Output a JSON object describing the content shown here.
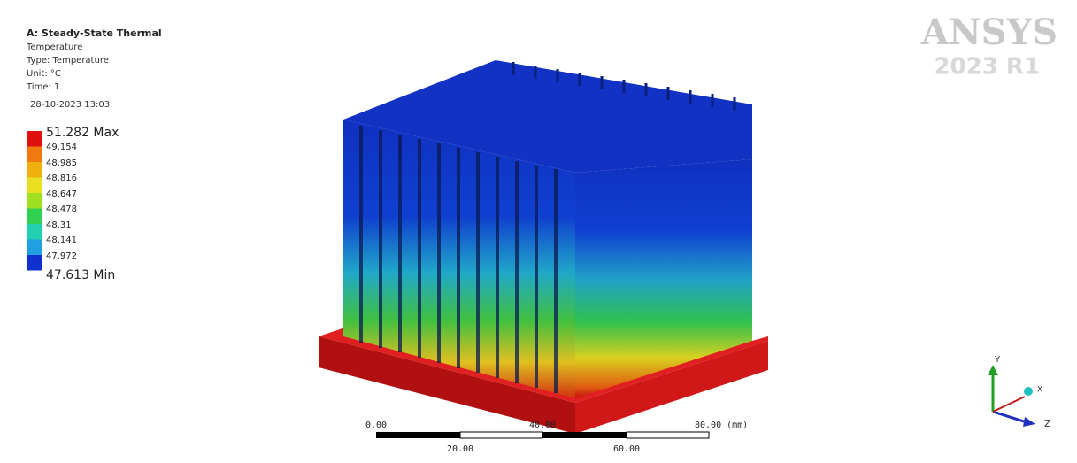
{
  "header": {
    "title": "A: Steady-State Thermal",
    "lines": [
      "Temperature",
      "Type: Temperature",
      "Unit: °C",
      "Time: 1",
      "28-10-2023 13:03"
    ]
  },
  "legend": {
    "labels": [
      "51.282 Max",
      "49.154",
      "48.985",
      "48.816",
      "48.647",
      "48.478",
      "48.31",
      "48.141",
      "47.972",
      "47.613 Min"
    ]
  },
  "logo": {
    "brand": "ANSYS",
    "version": "2023 R1"
  },
  "scale_bar": {
    "top_labels": [
      "0.00",
      "40.00",
      "80.00 (mm)"
    ],
    "bottom_labels": [
      "20.00",
      "60.00"
    ]
  },
  "triad": {
    "y": "Y",
    "z": "Z",
    "x": "X"
  }
}
